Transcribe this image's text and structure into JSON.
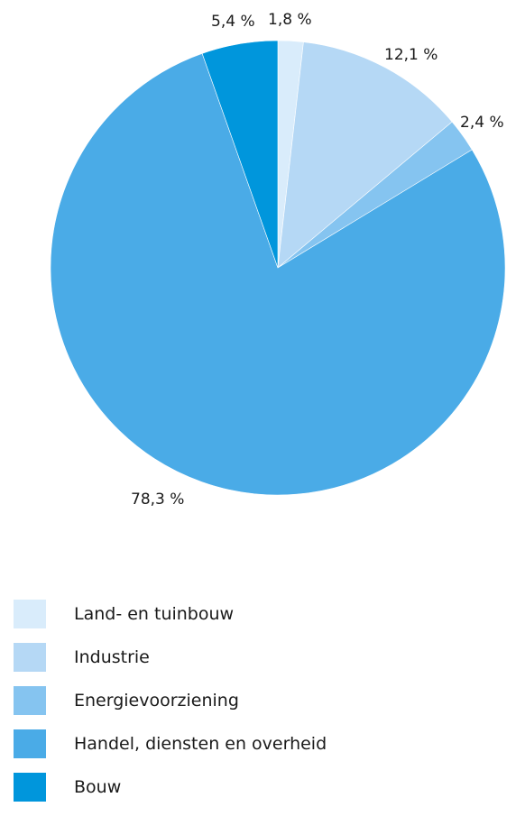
{
  "chart_data": {
    "type": "pie",
    "start_angle_deg": 0,
    "direction": "clockwise",
    "slices": [
      {
        "name": "Land- en tuinbouw",
        "value": 1.8,
        "label": "1,8 %",
        "color": "#d9ecfb"
      },
      {
        "name": "Industrie",
        "value": 12.1,
        "label": "12,1 %",
        "color": "#b5d8f5"
      },
      {
        "name": "Energievoorziening",
        "value": 2.4,
        "label": "2,4 %",
        "color": "#85c4f0"
      },
      {
        "name": "Handel, diensten en overheid",
        "value": 78.3,
        "label": "78,3 %",
        "color": "#4aabe7"
      },
      {
        "name": "Bouw",
        "value": 5.4,
        "label": "5,4 %",
        "color": "#0096dc"
      }
    ],
    "legend_position": "bottom-left"
  }
}
